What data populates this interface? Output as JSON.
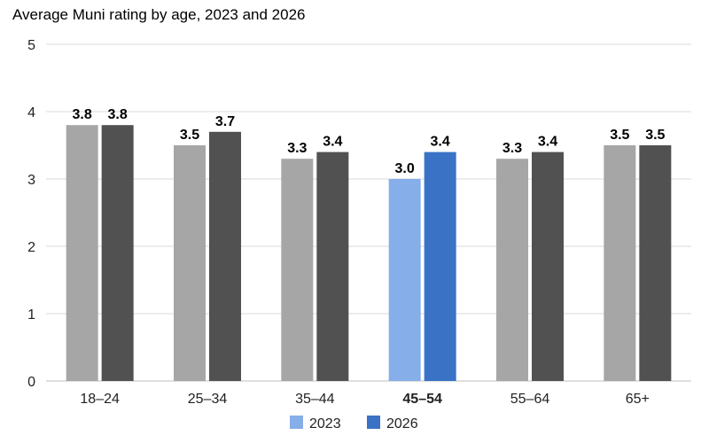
{
  "chart_data": {
    "type": "bar",
    "title": "Average Muni rating by age, 2023 and 2026",
    "xlabel": "",
    "ylabel": "",
    "ylim": [
      0,
      5
    ],
    "yticks": [
      0,
      1,
      2,
      3,
      4,
      5
    ],
    "grid": true,
    "legend": "bottom",
    "categories": [
      "18–24",
      "25–34",
      "35–44",
      "45–54",
      "55–64",
      "65+"
    ],
    "highlight_category": "45–54",
    "series": [
      {
        "name": "2023",
        "values": [
          3.8,
          3.5,
          3.3,
          3.0,
          3.3,
          3.5
        ],
        "data_labels": [
          "3.8",
          "3.5",
          "3.3",
          "3.0",
          "3.3",
          "3.5"
        ],
        "color": "#a6a6a6",
        "highlight_color": "#86aee8"
      },
      {
        "name": "2026",
        "values": [
          3.8,
          3.7,
          3.4,
          3.4,
          3.4,
          3.5
        ],
        "data_labels": [
          "3.8",
          "3.7",
          "3.4",
          "3.4",
          "3.4",
          "3.5"
        ],
        "color": "#505150",
        "highlight_color": "#3a72c6"
      }
    ]
  }
}
